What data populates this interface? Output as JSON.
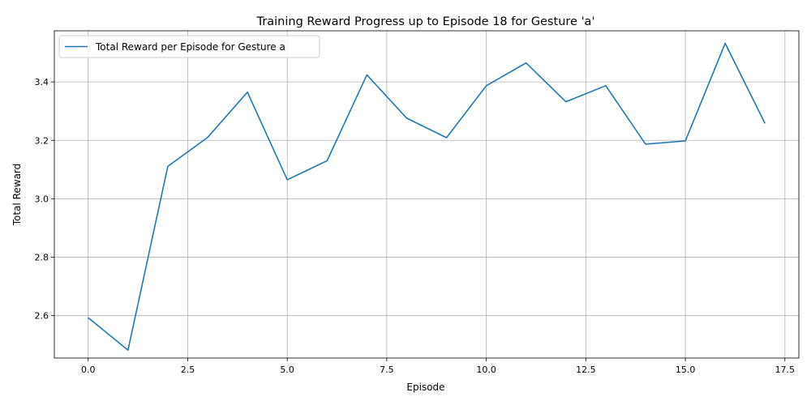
{
  "chart_data": {
    "type": "line",
    "title": "Training Reward Progress up to Episode 18 for Gesture 'a'",
    "xlabel": "Episode",
    "ylabel": "Total Reward",
    "xlim": [
      -0.85,
      17.85
    ],
    "ylim": [
      2.455,
      3.575
    ],
    "xticks": [
      0.0,
      2.5,
      5.0,
      7.5,
      10.0,
      12.5,
      15.0,
      17.5
    ],
    "xtick_labels": [
      "0.0",
      "2.5",
      "5.0",
      "7.5",
      "10.0",
      "12.5",
      "15.0",
      "17.5"
    ],
    "yticks": [
      2.6,
      2.8,
      3.0,
      3.2,
      3.4
    ],
    "ytick_labels": [
      "2.6",
      "2.8",
      "3.0",
      "3.2",
      "3.4"
    ],
    "grid": true,
    "legend_position": "top-left",
    "series": [
      {
        "name": "Total Reward per Episode for Gesture a",
        "color": "#1f77b4",
        "x": [
          0,
          1,
          2,
          3,
          4,
          5,
          6,
          7,
          8,
          9,
          10,
          11,
          12,
          13,
          14,
          15,
          16,
          17
        ],
        "y": [
          2.593,
          2.482,
          3.111,
          3.21,
          3.365,
          3.065,
          3.13,
          3.424,
          3.276,
          3.209,
          3.387,
          3.465,
          3.332,
          3.387,
          3.187,
          3.198,
          3.532,
          3.258
        ]
      }
    ]
  }
}
